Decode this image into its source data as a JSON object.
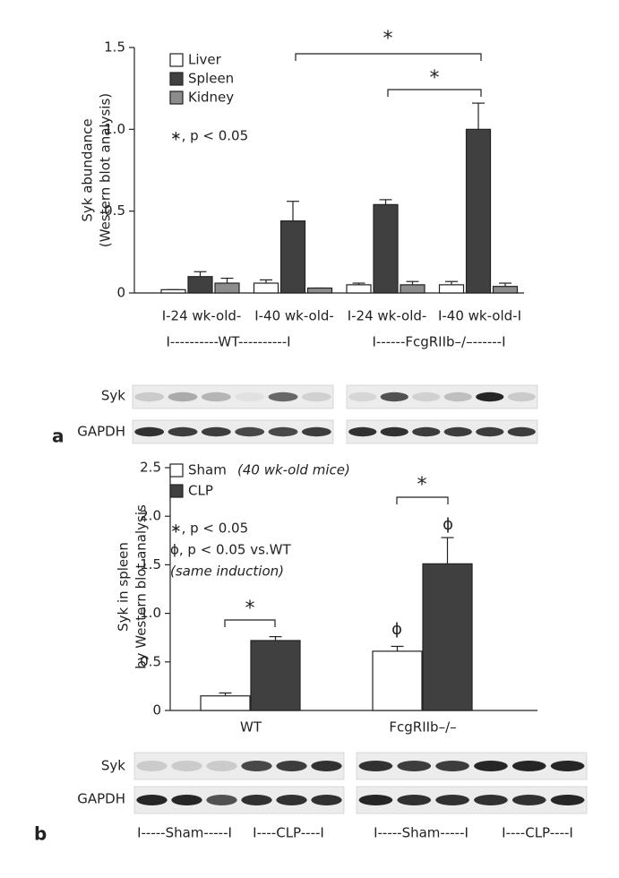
{
  "chart_data": [
    {
      "type": "bar",
      "ylabel": [
        "Syk abundance",
        "(Western blot analysis)"
      ],
      "categories": [
        "I-24 wk-old-",
        "I-40 wk-old-",
        "I-24 wk-old-",
        "I-40 wk-old-I"
      ],
      "category_groups": [
        "I----------WT----------I",
        "I------FcgRIIb–/–------I"
      ],
      "series": [
        {
          "name": "Liver",
          "color": "#ffffff",
          "values": [
            0.02,
            0.06,
            0.05,
            0.05
          ],
          "errors": [
            0,
            0.02,
            0.01,
            0.02
          ]
        },
        {
          "name": "Spleen",
          "color": "#404040",
          "values": [
            0.1,
            0.44,
            0.54,
            1.0
          ],
          "errors": [
            0.03,
            0.12,
            0.03,
            0.16
          ]
        },
        {
          "name": "Kidney",
          "color": "#8c8c8c",
          "values": [
            0.06,
            0.03,
            0.05,
            0.04
          ],
          "errors": [
            0.03,
            0,
            0.02,
            0.02
          ]
        }
      ],
      "ylim": [
        0,
        1.5
      ],
      "yticks": [
        0,
        0.5,
        {
          "value": 1,
          "label": "1.0"
        },
        1.5
      ],
      "legend": "upper left",
      "annotations": [
        "∗, p < 0.05",
        "*",
        "*"
      ]
    },
    {
      "type": "bar",
      "ylabel": [
        "Syk in spleen",
        "by Western blot analysis"
      ],
      "categories": [
        "WT",
        "FcgRIIb–/–"
      ],
      "series": [
        {
          "name": "Sham",
          "color": "#ffffff",
          "values": [
            0.15,
            0.61
          ],
          "errors": [
            0.03,
            0.05
          ]
        },
        {
          "name": "CLP",
          "color": "#404040",
          "values": [
            0.72,
            1.51
          ],
          "errors": [
            0.04,
            0.27
          ]
        }
      ],
      "ylim": [
        0,
        2.5
      ],
      "yticks": [
        0,
        0.5,
        {
          "value": 1,
          "label": "1.0"
        },
        1.5,
        {
          "value": 2,
          "label": "2.0"
        },
        2.5
      ],
      "legend": "upper left",
      "legend_note": "(40 wk-old mice)",
      "annotations": [
        "∗, p < 0.05",
        "ϕ, p < 0.05 vs.WT",
        "(same induction)",
        "*",
        "*",
        "ϕ",
        "ϕ"
      ]
    }
  ],
  "blots": {
    "a": {
      "panel": "a",
      "rows": [
        "Syk",
        "GAPDH"
      ]
    },
    "b": {
      "panel": "b",
      "rows": [
        "Syk",
        "GAPDH"
      ],
      "groups": [
        "I-----Sham-----I",
        "I----CLP----I",
        "I-----Sham-----I",
        "I----CLP----I"
      ]
    }
  }
}
